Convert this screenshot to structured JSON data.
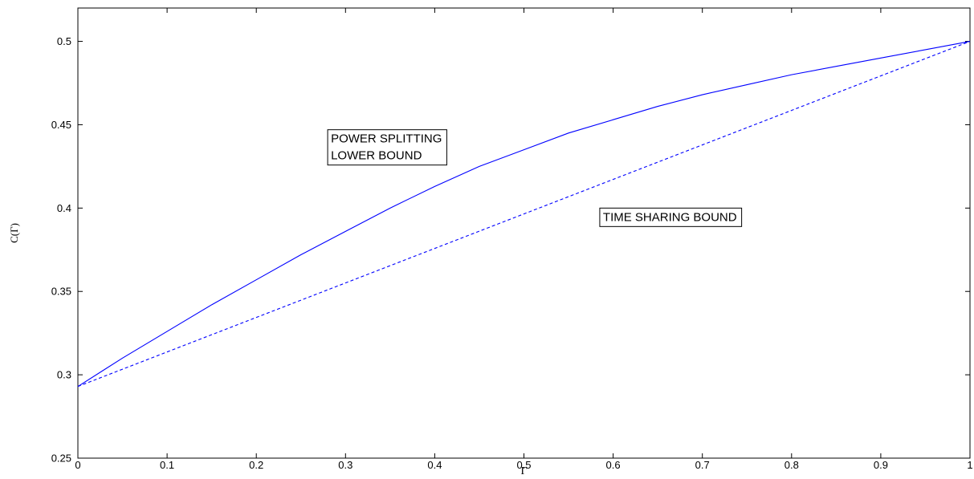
{
  "chart_data": {
    "type": "line",
    "xlabel": "Γ",
    "ylabel": "C(Γ)",
    "xlim": [
      0,
      1
    ],
    "ylim": [
      0.25,
      0.52
    ],
    "xticks": [
      "0",
      "0.1",
      "0.2",
      "0.3",
      "0.4",
      "0.5",
      "0.6",
      "0.7",
      "0.8",
      "0.9",
      "1"
    ],
    "yticks": [
      "0.25",
      "0.3",
      "0.35",
      "0.4",
      "0.45",
      "0.5"
    ],
    "grid": false,
    "color": "#0000ff",
    "series": [
      {
        "style": "solid",
        "x": [
          0,
          0.05,
          0.1,
          0.15,
          0.2,
          0.25,
          0.3,
          0.35,
          0.4,
          0.45,
          0.5,
          0.55,
          0.6,
          0.65,
          0.7,
          0.75,
          0.8,
          0.85,
          0.9,
          0.95,
          1
        ],
        "y": [
          0.293,
          0.31,
          0.326,
          0.342,
          0.357,
          0.372,
          0.386,
          0.4,
          0.413,
          0.425,
          0.435,
          0.445,
          0.453,
          0.461,
          0.468,
          0.474,
          0.48,
          0.485,
          0.49,
          0.495,
          0.5
        ]
      },
      {
        "style": "dashed",
        "x": [
          0,
          1
        ],
        "y": [
          0.293,
          0.5
        ]
      }
    ],
    "annotations": [
      {
        "lines": [
          "POWER SPLITTING",
          "LOWER BOUND"
        ],
        "x": 0.28,
        "y": 0.447
      },
      {
        "lines": [
          "TIME SHARING BOUND"
        ],
        "x": 0.585,
        "y": 0.4
      }
    ]
  }
}
